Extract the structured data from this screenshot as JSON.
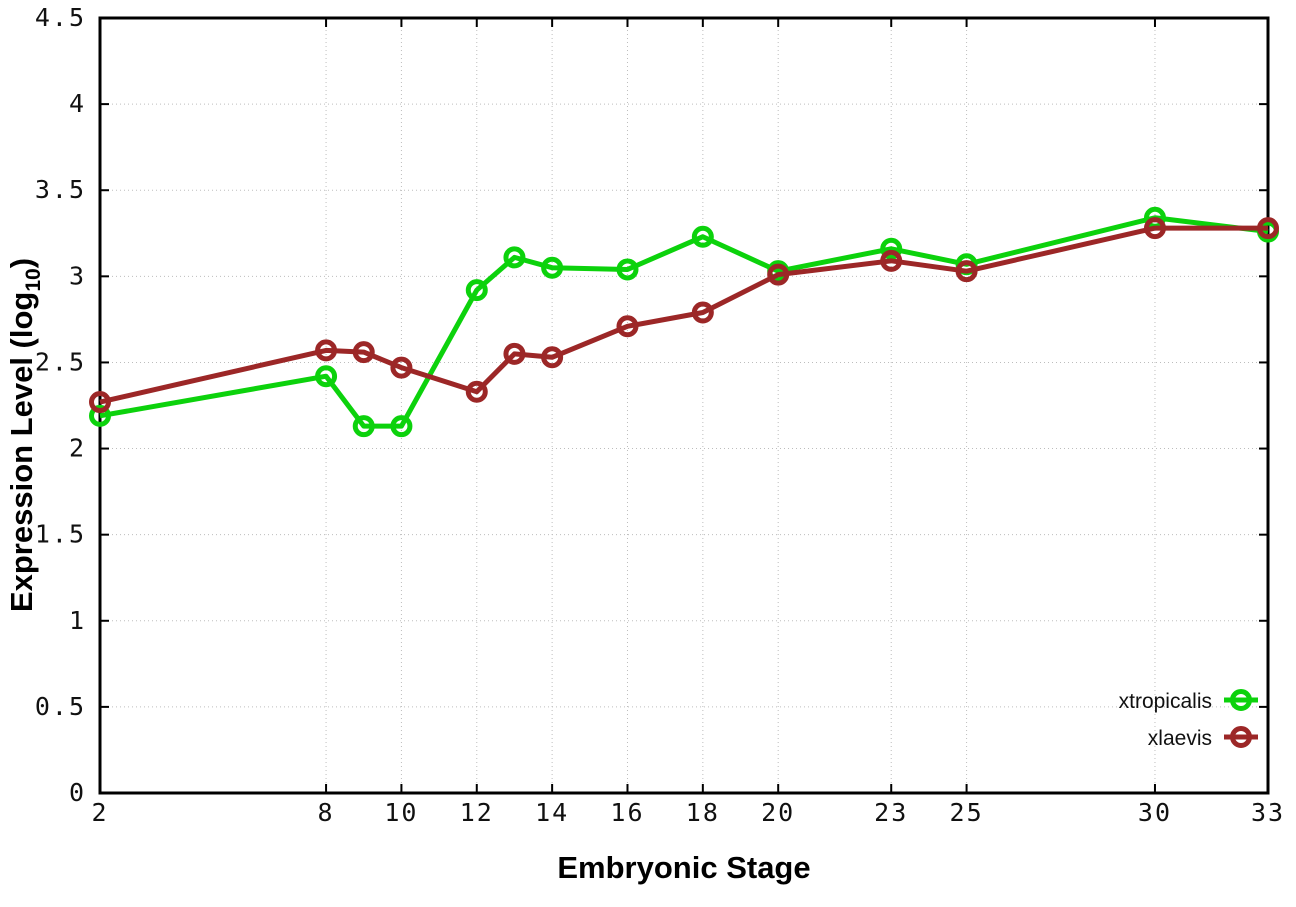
{
  "chart_data": {
    "type": "line",
    "title": "",
    "xlabel": "Embryonic Stage",
    "ylabel": {
      "prefix": "Expression Level (log",
      "subscript": "10",
      "suffix": ")"
    },
    "x": [
      2,
      8,
      9,
      10,
      12,
      13,
      14,
      16,
      18,
      20,
      23,
      25,
      30,
      33
    ],
    "series": [
      {
        "name": "xtropicalis",
        "color": "#0cd20c",
        "values": [
          2.19,
          2.42,
          2.13,
          2.13,
          2.92,
          3.11,
          3.05,
          3.04,
          3.23,
          3.03,
          3.16,
          3.07,
          3.34,
          3.26
        ]
      },
      {
        "name": "xlaevis",
        "color": "#9c2727",
        "values": [
          2.27,
          2.57,
          2.56,
          2.47,
          2.33,
          2.55,
          2.53,
          2.71,
          2.79,
          3.01,
          3.09,
          3.03,
          3.28,
          3.28
        ]
      }
    ],
    "xlim": [
      2,
      33
    ],
    "ylim": [
      0,
      4.5
    ],
    "xticks": [
      2,
      8,
      10,
      12,
      14,
      16,
      18,
      20,
      23,
      25,
      30,
      33
    ],
    "yticks": [
      0,
      0.5,
      1,
      1.5,
      2,
      2.5,
      3,
      3.5,
      4,
      4.5
    ],
    "ytick_labels": [
      "0",
      "0.5",
      "1",
      "1.5",
      "2",
      "2.5",
      "3",
      "3.5",
      "4",
      "4.5"
    ],
    "grid": true,
    "legend_position": "bottom-right",
    "marker": "open-circle",
    "line_width": 5,
    "marker_radius": 8.5,
    "colors": {
      "background": "#ffffff",
      "axis": "#000000",
      "grid": "#bdbdbd",
      "tick_text": "#111111"
    }
  }
}
